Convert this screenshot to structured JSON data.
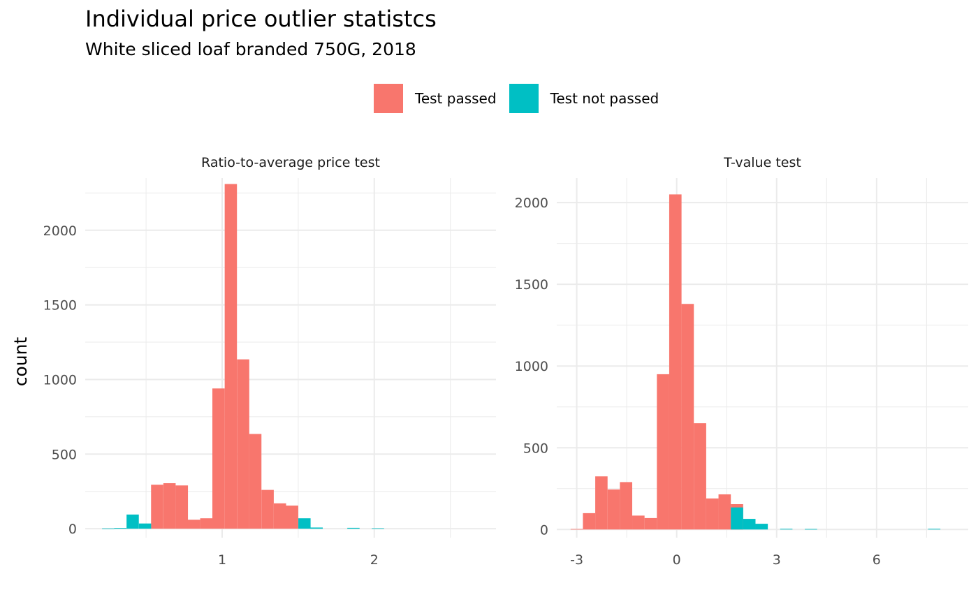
{
  "title": "Individual price outlier statistcs",
  "subtitle": "White sliced loaf branded 750G, 2018",
  "colors": {
    "passed": "#F8766D",
    "not_passed": "#00BFC4",
    "grid": "#EBEBEB"
  },
  "legend": {
    "position": "top",
    "items": [
      {
        "label": "Test passed",
        "key": "passed"
      },
      {
        "label": "Test not passed",
        "key": "not_passed"
      }
    ]
  },
  "chart_data": [
    {
      "type": "bar",
      "facet_title": "Ratio-to-average price test",
      "ylabel": "count",
      "xlim": [
        0.1,
        2.8
      ],
      "ylim": [
        -60,
        2350
      ],
      "x_ticks": [
        1,
        2
      ],
      "x_tick_labels": [
        "1",
        "2"
      ],
      "x_minor_grid": [
        0.5,
        1.5,
        2.5
      ],
      "y_ticks": [
        0,
        500,
        1000,
        1500,
        2000
      ],
      "y_tick_labels": [
        "0",
        "500",
        "1000",
        "1500",
        "2000"
      ],
      "y_minor_grid": [
        250,
        750,
        1250,
        1750,
        2250
      ],
      "bin_width": 0.0806,
      "series": [
        {
          "name": "Test passed",
          "color_key": "passed",
          "bins": [
            {
              "x": 0.493,
              "count": 0
            },
            {
              "x": 0.573,
              "count": 295
            },
            {
              "x": 0.654,
              "count": 305
            },
            {
              "x": 0.735,
              "count": 290
            },
            {
              "x": 0.815,
              "count": 60
            },
            {
              "x": 0.896,
              "count": 70
            },
            {
              "x": 0.976,
              "count": 940
            },
            {
              "x": 1.057,
              "count": 2310
            },
            {
              "x": 1.138,
              "count": 1135
            },
            {
              "x": 1.218,
              "count": 635
            },
            {
              "x": 1.299,
              "count": 260
            },
            {
              "x": 1.38,
              "count": 170
            },
            {
              "x": 1.46,
              "count": 155
            }
          ]
        },
        {
          "name": "Test not passed",
          "color_key": "not_passed",
          "bins": [
            {
              "x": 0.251,
              "count": 2
            },
            {
              "x": 0.331,
              "count": 5
            },
            {
              "x": 0.412,
              "count": 95
            },
            {
              "x": 0.493,
              "count": 35
            },
            {
              "x": 1.541,
              "count": 70
            },
            {
              "x": 1.621,
              "count": 8
            },
            {
              "x": 1.863,
              "count": 6
            },
            {
              "x": 2.024,
              "count": 3
            }
          ]
        }
      ]
    },
    {
      "type": "bar",
      "facet_title": "T-value test",
      "ylabel": "",
      "xlim": [
        -3.6,
        8.75
      ],
      "ylim": [
        -50,
        2150
      ],
      "x_ticks": [
        -3,
        0,
        3,
        6
      ],
      "x_tick_labels": [
        "-3",
        "0",
        "3",
        "6"
      ],
      "x_minor_grid": [
        -1.5,
        1.5,
        4.5,
        7.5
      ],
      "y_ticks": [
        0,
        500,
        1000,
        1500,
        2000
      ],
      "y_tick_labels": [
        "0",
        "500",
        "1000",
        "1500",
        "2000"
      ],
      "y_minor_grid": [
        250,
        750,
        1250,
        1750
      ],
      "bin_width": 0.37,
      "series": [
        {
          "name": "Test passed",
          "color_key": "passed",
          "bins": [
            {
              "x": -3.0,
              "count": 3
            },
            {
              "x": -2.63,
              "count": 100
            },
            {
              "x": -2.26,
              "count": 325
            },
            {
              "x": -1.89,
              "count": 245
            },
            {
              "x": -1.52,
              "count": 290
            },
            {
              "x": -1.15,
              "count": 85
            },
            {
              "x": -0.78,
              "count": 70
            },
            {
              "x": -0.41,
              "count": 950
            },
            {
              "x": -0.04,
              "count": 2050
            },
            {
              "x": 0.33,
              "count": 1380
            },
            {
              "x": 0.7,
              "count": 650
            },
            {
              "x": 1.07,
              "count": 190
            },
            {
              "x": 1.44,
              "count": 215
            },
            {
              "x": 1.81,
              "count": 155
            }
          ]
        },
        {
          "name": "Test not passed",
          "color_key": "not_passed",
          "bins": [
            {
              "x": 1.81,
              "count": 135
            },
            {
              "x": 2.18,
              "count": 65
            },
            {
              "x": 2.55,
              "count": 35
            },
            {
              "x": 3.29,
              "count": 4
            },
            {
              "x": 4.03,
              "count": 3
            },
            {
              "x": 7.73,
              "count": 4
            }
          ]
        }
      ]
    }
  ]
}
